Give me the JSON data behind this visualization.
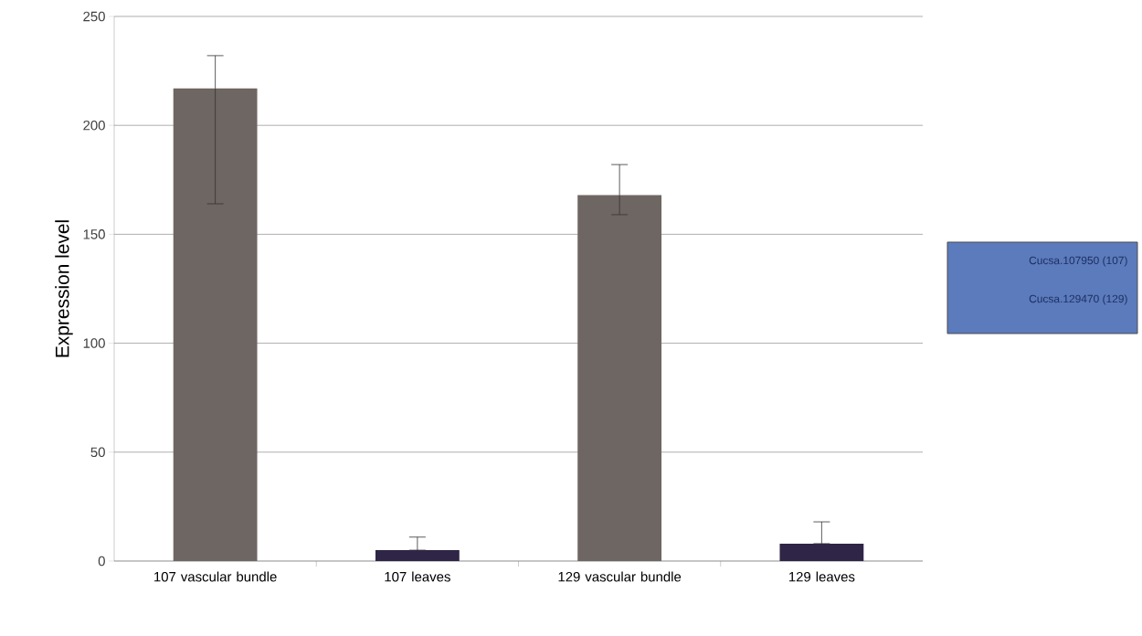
{
  "chart_data": {
    "type": "bar",
    "ylabel": "Expression level",
    "categories": [
      "107 vascular bundle",
      "107 leaves",
      "129 vascular bundle",
      "129 leaves"
    ],
    "values": [
      217,
      5,
      168,
      8
    ],
    "colors": [
      "#6e6662",
      "#2e2547",
      "#6e6662",
      "#2e2547"
    ],
    "errors": [
      [
        164,
        232
      ],
      [
        5,
        11
      ],
      [
        159,
        182
      ],
      [
        8,
        18
      ]
    ],
    "ylim": [
      0,
      250
    ],
    "yticks": [
      0,
      50,
      100,
      150,
      200,
      250
    ],
    "grid": "y",
    "annotations": [
      "Cucsa.107950  (107)",
      "Cucsa.129470  (129)"
    ]
  }
}
